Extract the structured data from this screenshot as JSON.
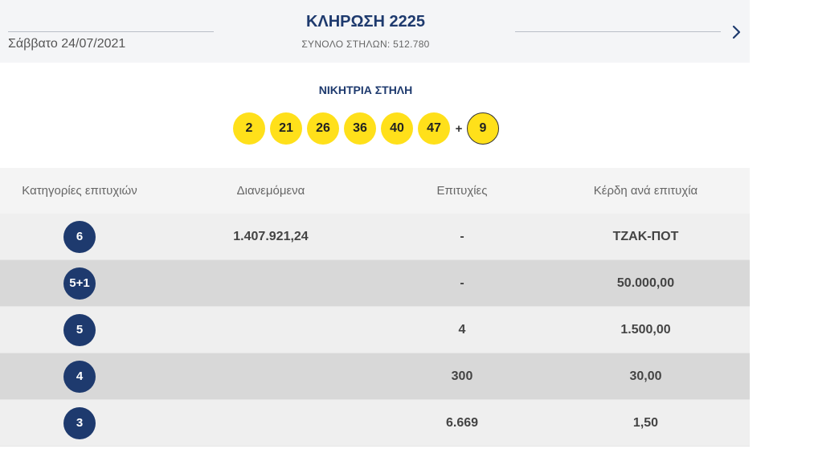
{
  "draw": {
    "date": "Σάββατο 24/07/2021",
    "title": "ΚΛΗΡΩΣΗ 2225",
    "columns_total": "ΣΥΝΟΛΟ ΣΤΗΛΩΝ: 512.780",
    "next_icon": "chevron-right-icon"
  },
  "winning": {
    "title": "ΝΙΚΗΤΡΙΑ ΣΤΗΛΗ",
    "numbers": [
      "2",
      "21",
      "26",
      "36",
      "40",
      "47"
    ],
    "plus": "+",
    "joker": "9"
  },
  "table": {
    "headers": [
      "Κατηγορίες επιτυχιών",
      "Διανεμόμενα",
      "Επιτυχίες",
      "Κέρδη ανά επιτυχία"
    ],
    "rows": [
      {
        "category": "6",
        "distributed": "1.407.921,24",
        "winners": "-",
        "prize": "ΤΖΑΚ-ΠΟΤ"
      },
      {
        "category": "5+1",
        "distributed": "",
        "winners": "-",
        "prize": "50.000,00"
      },
      {
        "category": "5",
        "distributed": "",
        "winners": "4",
        "prize": "1.500,00"
      },
      {
        "category": "4",
        "distributed": "",
        "winners": "300",
        "prize": "30,00"
      },
      {
        "category": "3",
        "distributed": "",
        "winners": "6.669",
        "prize": "1,50"
      }
    ]
  },
  "colors": {
    "ball": "#ffe01a",
    "badge": "#1e3a6e",
    "header_bg": "#f4f5f7"
  }
}
